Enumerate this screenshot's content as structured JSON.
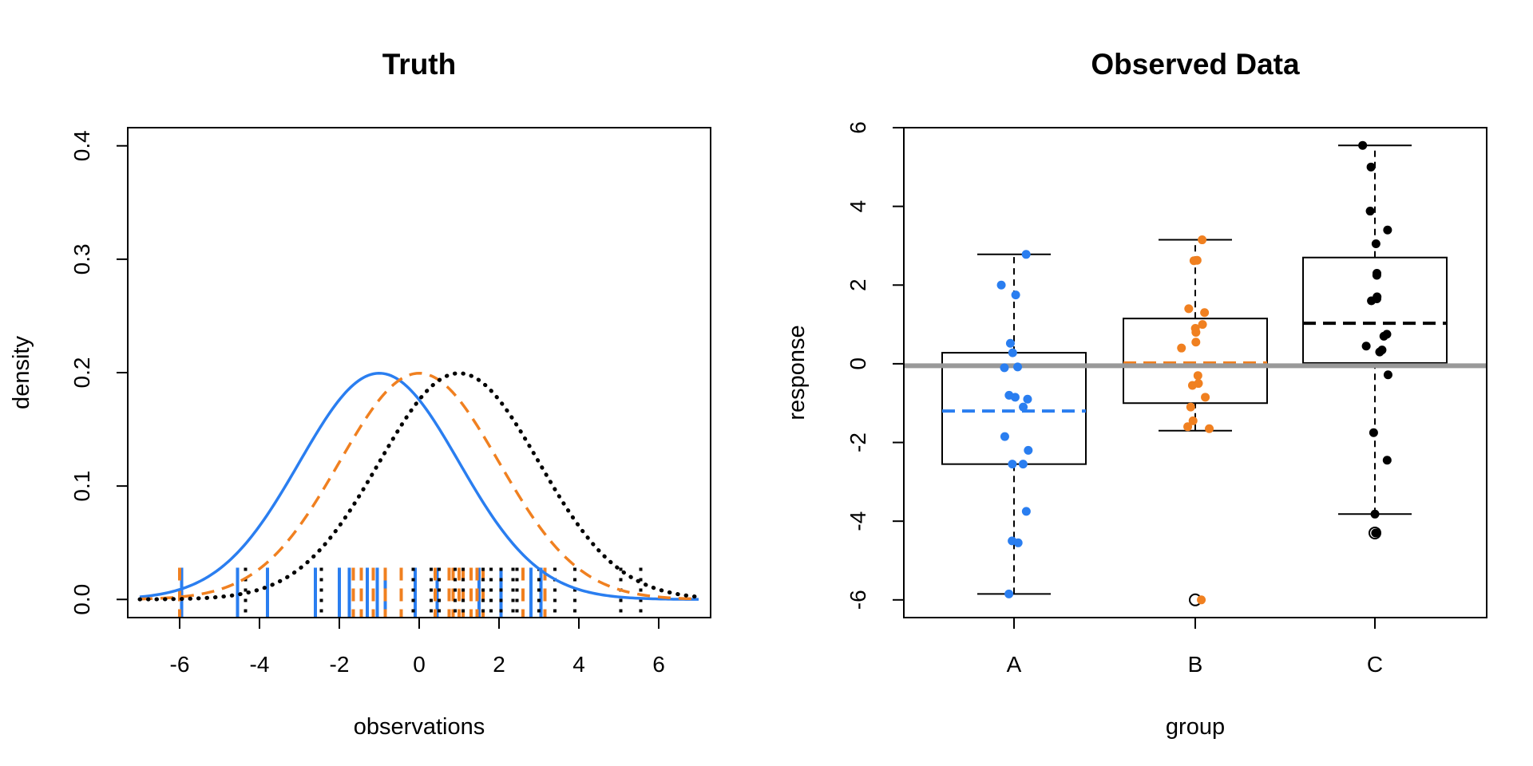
{
  "colors": {
    "blue": "#2a7ef0",
    "orange": "#f08020",
    "black": "#000000",
    "gray": "#999999"
  },
  "chart_data": [
    {
      "type": "line",
      "title": "Truth",
      "xlabel": "observations",
      "ylabel": "density",
      "xlim": [
        -7.3,
        7.3
      ],
      "ylim": [
        -0.016,
        0.416
      ],
      "xticks": [
        -6,
        -4,
        -2,
        0,
        2,
        4,
        6
      ],
      "yticks": [
        0.0,
        0.1,
        0.2,
        0.3,
        0.4
      ],
      "ytick_labels": [
        "0.0",
        "0.1",
        "0.2",
        "0.3",
        "0.4"
      ],
      "curve_x_range": [
        -7,
        7
      ],
      "series": [
        {
          "color": "blue",
          "line_style": "solid",
          "density": {
            "distribution": "normal",
            "mean": -1,
            "sd": 2
          },
          "rug": [
            -5.95,
            -4.55,
            -3.8,
            -2.6,
            -2.0,
            -1.75,
            -1.3,
            -1.05,
            -0.85,
            -0.1,
            0.45,
            1.5,
            2.05,
            2.8,
            3.05
          ]
        },
        {
          "color": "orange",
          "line_style": "dashed",
          "density": {
            "distribution": "normal",
            "mean": 0,
            "sd": 2
          },
          "rug": [
            -6.0,
            -1.65,
            -1.45,
            -1.15,
            -0.85,
            -0.45,
            0.4,
            0.75,
            0.85,
            1.0,
            1.1,
            1.3,
            1.45,
            1.6,
            2.6,
            3.15
          ]
        },
        {
          "color": "black",
          "line_style": "dotted",
          "density": {
            "distribution": "normal",
            "mean": 1,
            "sd": 2
          },
          "rug": [
            -4.35,
            -2.45,
            -0.15,
            0.3,
            0.5,
            0.9,
            1.1,
            1.6,
            1.8,
            2.05,
            2.35,
            2.45,
            3.0,
            3.4,
            3.9,
            5.05,
            5.55
          ]
        }
      ]
    },
    {
      "type": "box",
      "title": "Observed Data",
      "xlabel": "group",
      "ylabel": "response",
      "categories": [
        "A",
        "B",
        "C"
      ],
      "ylim": [
        -6.45,
        6.0
      ],
      "yticks": [
        -6,
        -4,
        -2,
        0,
        2,
        4,
        6
      ],
      "ytick_labels": [
        "-6",
        "-4",
        "-2",
        "0",
        "2",
        "4",
        "6"
      ],
      "reference_line": {
        "y": -0.05,
        "color": "gray"
      },
      "boxes": [
        {
          "category": "A",
          "color": "blue",
          "whisker_low": -5.85,
          "q1": -2.55,
          "median": -1.2,
          "q3": 0.28,
          "whisker_high": 2.78,
          "outliers": []
        },
        {
          "category": "B",
          "color": "orange",
          "whisker_low": -1.7,
          "q1": -1.0,
          "median": 0.02,
          "q3": 1.15,
          "whisker_high": 3.15,
          "outliers": [
            -6.0
          ]
        },
        {
          "category": "C",
          "color": "black",
          "whisker_low": -3.82,
          "q1": 0.02,
          "median": 1.03,
          "q3": 2.7,
          "whisker_high": 5.55,
          "outliers": [
            -4.3
          ]
        }
      ],
      "points": [
        {
          "category": "A",
          "color": "blue",
          "values": [
            2.78,
            2.0,
            1.75,
            0.52,
            0.28,
            -0.08,
            -0.1,
            -0.8,
            -0.85,
            -0.9,
            -1.1,
            -1.85,
            -2.2,
            -2.55,
            -2.55,
            -3.75,
            -4.5,
            -4.55,
            -5.85
          ]
        },
        {
          "category": "B",
          "color": "orange",
          "values": [
            3.15,
            2.63,
            2.62,
            1.4,
            1.3,
            1.0,
            0.9,
            0.8,
            0.55,
            0.4,
            -0.3,
            -0.5,
            -0.55,
            -0.85,
            -1.1,
            -1.45,
            -1.6,
            -1.65,
            -6.0
          ]
        },
        {
          "category": "C",
          "color": "black",
          "values": [
            5.55,
            5.0,
            3.88,
            3.4,
            3.05,
            2.3,
            2.25,
            1.7,
            1.65,
            1.6,
            0.75,
            0.7,
            0.45,
            0.35,
            0.3,
            -0.28,
            -1.75,
            -2.45,
            -3.82,
            -4.3
          ]
        }
      ]
    }
  ]
}
